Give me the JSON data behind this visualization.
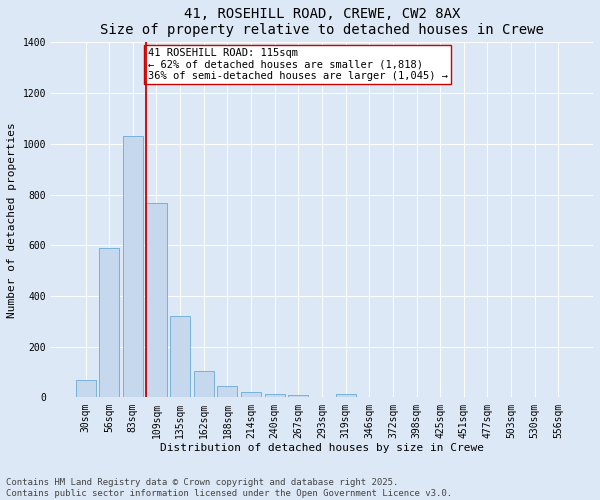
{
  "title1": "41, ROSEHILL ROAD, CREWE, CW2 8AX",
  "title2": "Size of property relative to detached houses in Crewe",
  "xlabel": "Distribution of detached houses by size in Crewe",
  "ylabel": "Number of detached properties",
  "categories": [
    "30sqm",
    "56sqm",
    "83sqm",
    "109sqm",
    "135sqm",
    "162sqm",
    "188sqm",
    "214sqm",
    "240sqm",
    "267sqm",
    "293sqm",
    "319sqm",
    "346sqm",
    "372sqm",
    "398sqm",
    "425sqm",
    "451sqm",
    "477sqm",
    "503sqm",
    "530sqm",
    "556sqm"
  ],
  "values": [
    70,
    590,
    1030,
    765,
    320,
    105,
    45,
    22,
    15,
    8,
    0,
    12,
    0,
    0,
    0,
    0,
    0,
    0,
    0,
    0,
    0
  ],
  "bar_color": "#c5d8ee",
  "bar_edge_color": "#6aaad4",
  "vline_x_index": 3,
  "vline_color": "#cc0000",
  "annotation_text": "41 ROSEHILL ROAD: 115sqm\n← 62% of detached houses are smaller (1,818)\n36% of semi-detached houses are larger (1,045) →",
  "annotation_box_color": "#ffffff",
  "annotation_box_edge": "#cc0000",
  "ylim": [
    0,
    1400
  ],
  "yticks": [
    0,
    200,
    400,
    600,
    800,
    1000,
    1200,
    1400
  ],
  "background_color": "#dce8f5",
  "plot_bg_color": "#dce8f5",
  "footer_text": "Contains HM Land Registry data © Crown copyright and database right 2025.\nContains public sector information licensed under the Open Government Licence v3.0.",
  "title1_fontsize": 10,
  "title2_fontsize": 9,
  "xlabel_fontsize": 8,
  "ylabel_fontsize": 8,
  "tick_fontsize": 7,
  "annotation_fontsize": 7.5,
  "footer_fontsize": 6.5,
  "figwidth": 6.0,
  "figheight": 5.0,
  "dpi": 100
}
